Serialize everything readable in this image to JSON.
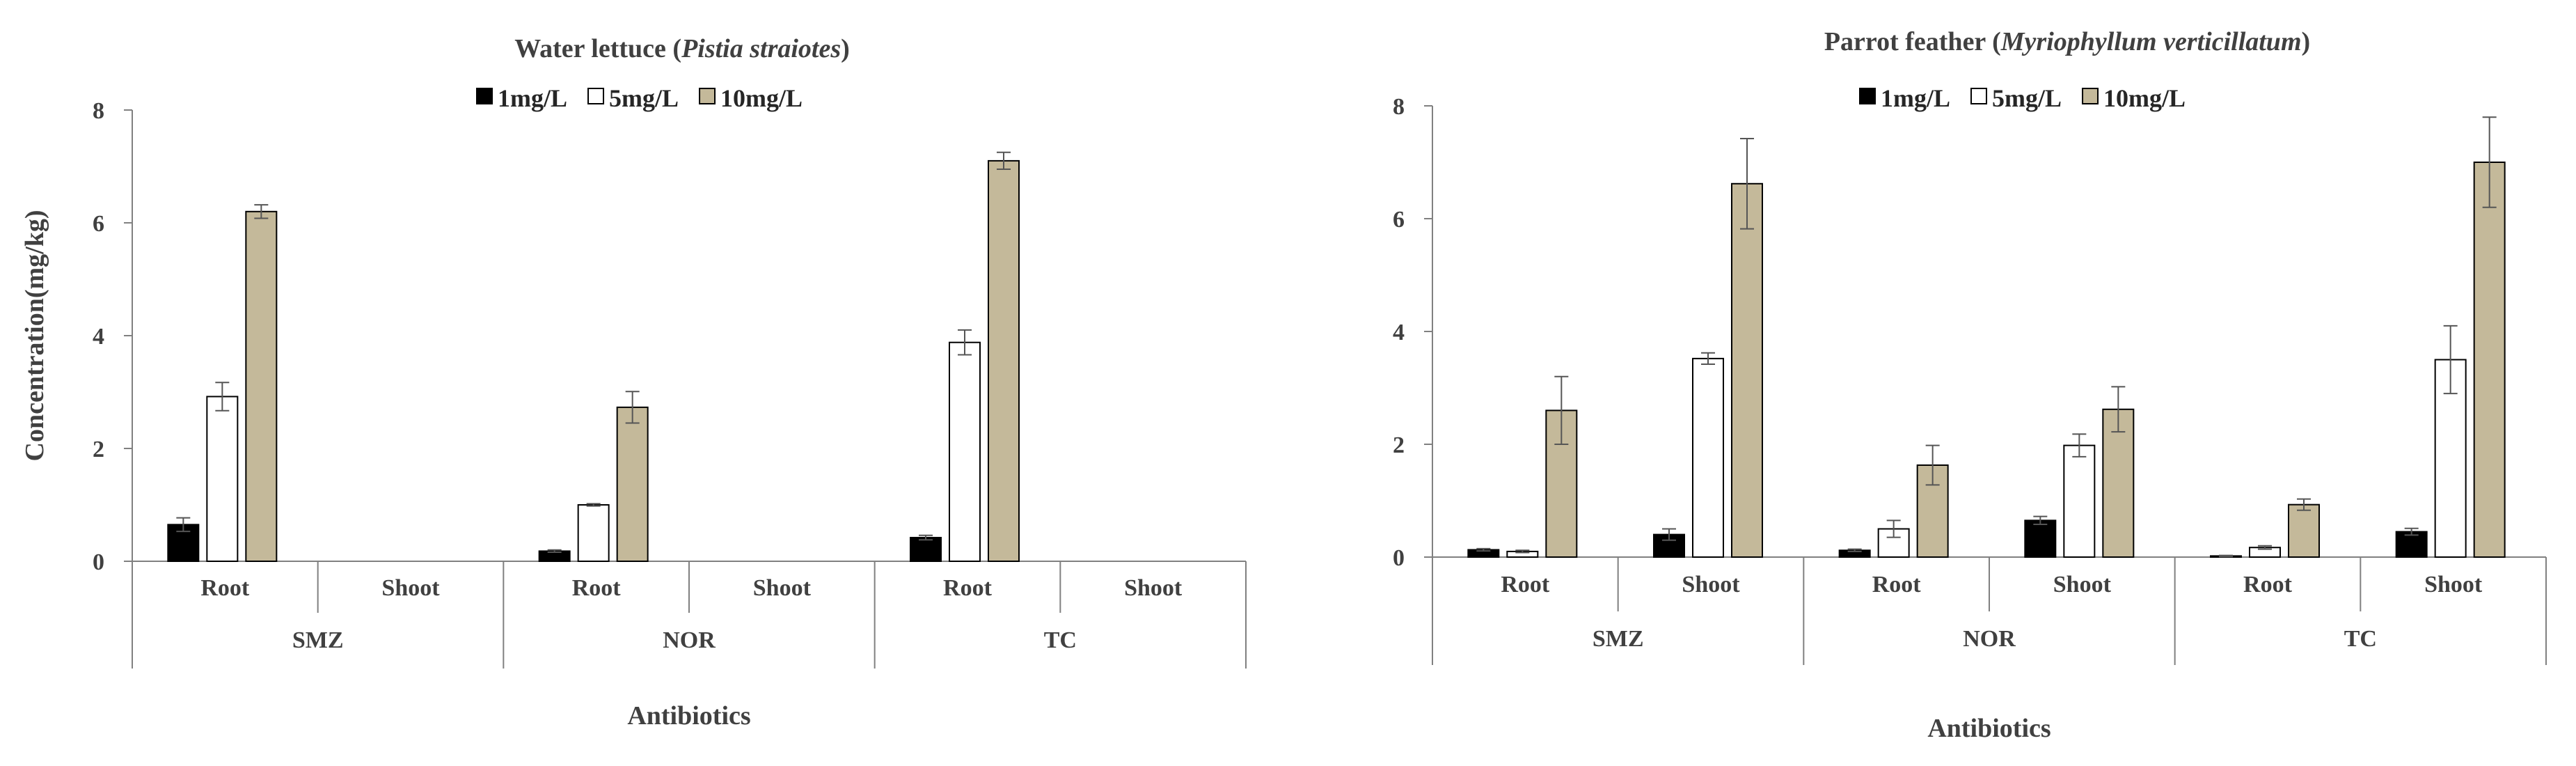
{
  "chart_data": [
    {
      "type": "bar",
      "title_parts": [
        {
          "text": "Water lettuce (",
          "italic": false
        },
        {
          "text": "Pistia straiotes",
          "italic": true
        },
        {
          "text": ")",
          "italic": false
        }
      ],
      "ylabel": "Concentration(mg/kg)",
      "xlabel": "Antibiotics",
      "ylim": [
        0,
        8
      ],
      "yticks": [
        0,
        2,
        4,
        6,
        8
      ],
      "groups": [
        {
          "name": "SMZ",
          "categories": [
            "Root",
            "Shoot"
          ]
        },
        {
          "name": "NOR",
          "categories": [
            "Root",
            "Shoot"
          ]
        },
        {
          "name": "TC",
          "categories": [
            "Root",
            "Shoot"
          ]
        }
      ],
      "legend_position": "top-center",
      "series": [
        {
          "name": "1mg/L",
          "color": "#000000",
          "values": [
            0.65,
            0,
            0.18,
            0,
            0.42,
            0
          ],
          "errors": [
            0.12,
            0,
            0.02,
            0,
            0.04,
            0
          ]
        },
        {
          "name": "5mg/L",
          "color": "#ffffff",
          "values": [
            2.92,
            0,
            1.0,
            0,
            3.88,
            0
          ],
          "errors": [
            0.25,
            0,
            0.02,
            0,
            0.22,
            0
          ]
        },
        {
          "name": "10mg/L",
          "color": "#c4b99a",
          "values": [
            6.2,
            0,
            2.73,
            0,
            7.1,
            0
          ],
          "errors": [
            0.12,
            0,
            0.28,
            0,
            0.15,
            0
          ]
        }
      ]
    },
    {
      "type": "bar",
      "title_parts": [
        {
          "text": "Parrot feather (",
          "italic": false
        },
        {
          "text": "Myriophyllum verticillatum",
          "italic": true
        },
        {
          "text": ")",
          "italic": false
        }
      ],
      "ylabel": "",
      "xlabel": "Antibiotics",
      "ylim": [
        0,
        8
      ],
      "yticks": [
        0,
        2,
        4,
        6,
        8
      ],
      "groups": [
        {
          "name": "SMZ",
          "categories": [
            "Root",
            "Shoot"
          ]
        },
        {
          "name": "NOR",
          "categories": [
            "Root",
            "Shoot"
          ]
        },
        {
          "name": "TC",
          "categories": [
            "Root",
            "Shoot"
          ]
        }
      ],
      "legend_position": "top-center",
      "series": [
        {
          "name": "1mg/L",
          "color": "#000000",
          "values": [
            0.13,
            0.4,
            0.12,
            0.65,
            0.02,
            0.45
          ],
          "errors": [
            0.02,
            0.1,
            0.02,
            0.07,
            0.01,
            0.06
          ]
        },
        {
          "name": "5mg/L",
          "color": "#ffffff",
          "values": [
            0.1,
            3.52,
            0.5,
            1.98,
            0.17,
            3.5
          ],
          "errors": [
            0.02,
            0.1,
            0.15,
            0.2,
            0.03,
            0.6
          ]
        },
        {
          "name": "10mg/L",
          "color": "#c4b99a",
          "values": [
            2.6,
            6.62,
            1.63,
            2.62,
            0.93,
            7.0
          ],
          "errors": [
            0.6,
            0.8,
            0.35,
            0.4,
            0.1,
            0.8
          ]
        }
      ]
    }
  ]
}
